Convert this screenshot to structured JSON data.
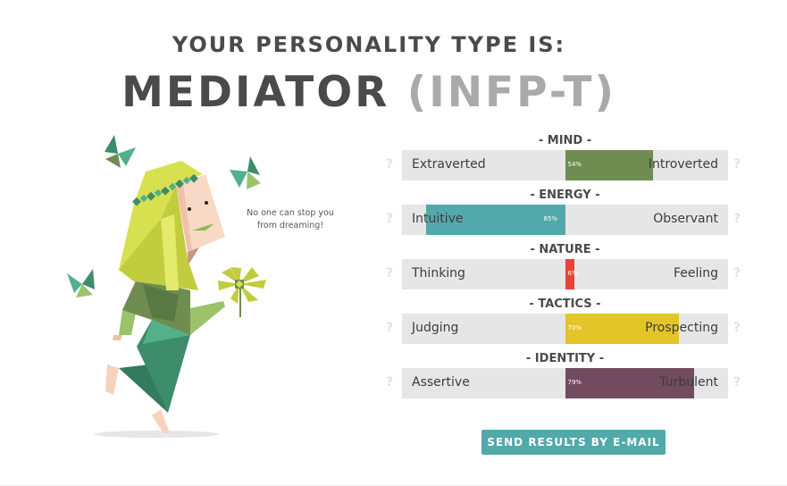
{
  "header": {
    "subtitle": "YOUR PERSONALITY TYPE IS:",
    "type_name": "MEDIATOR",
    "type_code": "(INFP-T)"
  },
  "illustration": {
    "quote": "No one can stop you from dreaming!",
    "icons": [
      "character-illustration",
      "butterfly-icon",
      "flower-icon"
    ]
  },
  "traits": [
    {
      "title": "- MIND -",
      "left": "Extraverted",
      "right": "Introverted",
      "percent": 54,
      "percent_label": "54%",
      "side": "right",
      "color": "#6f8c51",
      "help": "?"
    },
    {
      "title": "- ENERGY -",
      "left": "Intuitive",
      "right": "Observant",
      "percent": 85,
      "percent_label": "85%",
      "side": "left",
      "color": "#52a8ab",
      "help": "?"
    },
    {
      "title": "- NATURE -",
      "left": "Thinking",
      "right": "Feeling",
      "percent": 6,
      "percent_label": "6%",
      "side": "right",
      "color": "#e8423a",
      "help": "?"
    },
    {
      "title": "- TACTICS -",
      "left": "Judging",
      "right": "Prospecting",
      "percent": 70,
      "percent_label": "70%",
      "side": "right",
      "color": "#e3c52a",
      "help": "?"
    },
    {
      "title": "- IDENTITY -",
      "left": "Assertive",
      "right": "Turbulent",
      "percent": 79,
      "percent_label": "79%",
      "side": "right",
      "color": "#734b5e",
      "help": "?"
    }
  ],
  "actions": {
    "email_label": "SEND RESULTS BY E-MAIL"
  }
}
